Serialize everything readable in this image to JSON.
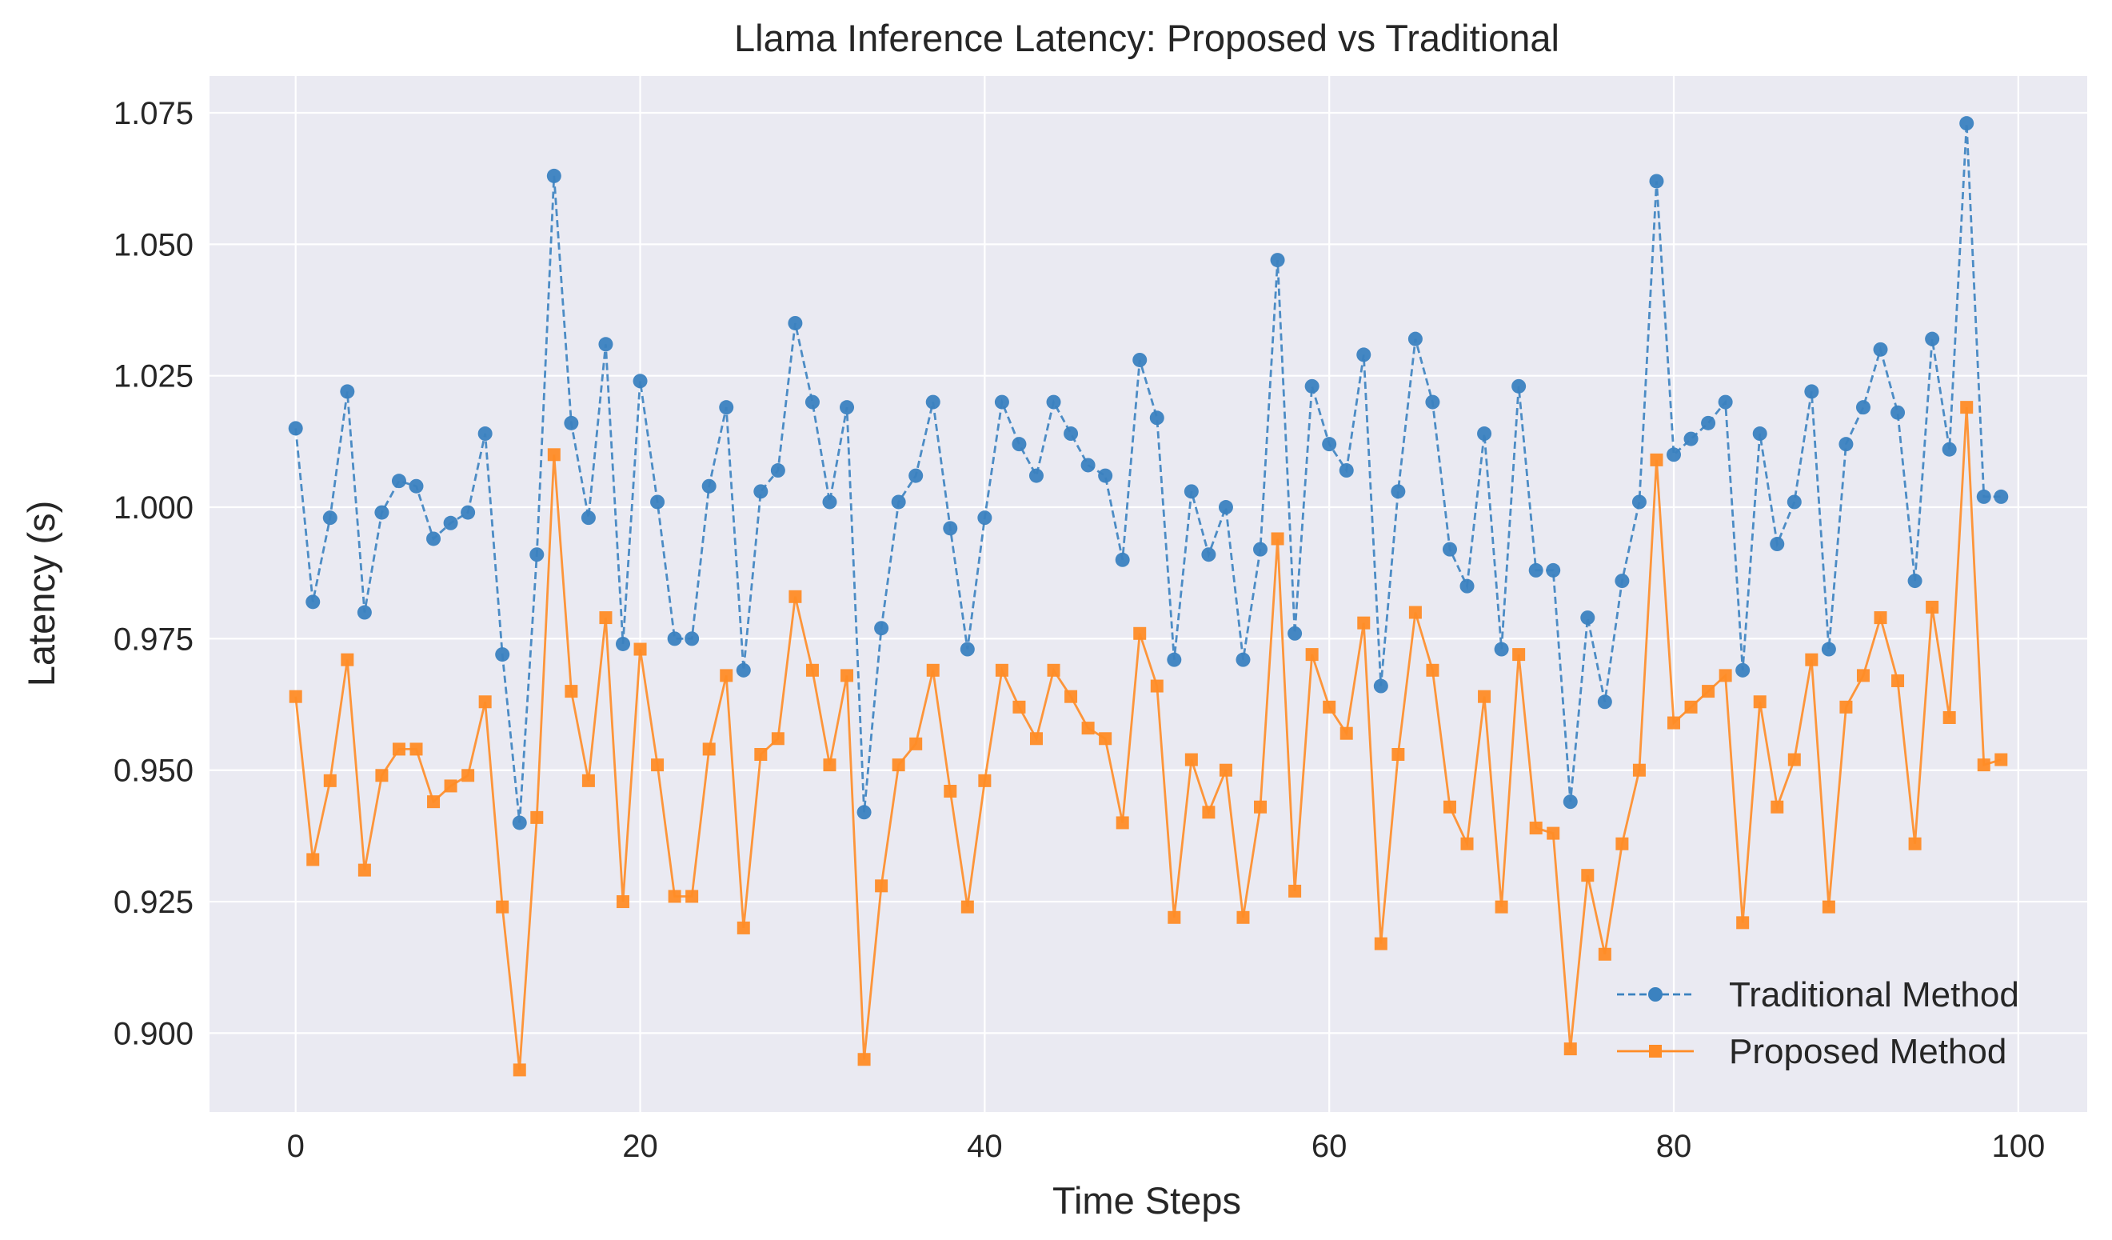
{
  "chart_data": {
    "type": "line",
    "title": "Llama Inference Latency: Proposed vs Traditional",
    "xlabel": "Time Steps",
    "ylabel": "Latency (s)",
    "xlim": [
      -5,
      104
    ],
    "ylim": [
      0.885,
      1.082
    ],
    "xticks": [
      0,
      20,
      40,
      60,
      80,
      100
    ],
    "xtick_labels": [
      "0",
      "20",
      "40",
      "60",
      "80",
      "100"
    ],
    "yticks": [
      0.9,
      0.925,
      0.95,
      0.975,
      1.0,
      1.025,
      1.05,
      1.075
    ],
    "ytick_labels": [
      "0.900",
      "0.925",
      "0.950",
      "0.975",
      "1.000",
      "1.025",
      "1.050",
      "1.075"
    ],
    "grid": true,
    "legend_position": "bottom-right",
    "x": [
      0,
      1,
      2,
      3,
      4,
      5,
      6,
      7,
      8,
      9,
      10,
      11,
      12,
      13,
      14,
      15,
      16,
      17,
      18,
      19,
      20,
      21,
      22,
      23,
      24,
      25,
      26,
      27,
      28,
      29,
      30,
      31,
      32,
      33,
      34,
      35,
      36,
      37,
      38,
      39,
      40,
      41,
      42,
      43,
      44,
      45,
      46,
      47,
      48,
      49,
      50,
      51,
      52,
      53,
      54,
      55,
      56,
      57,
      58,
      59,
      60,
      61,
      62,
      63,
      64,
      65,
      66,
      67,
      68,
      69,
      70,
      71,
      72,
      73,
      74,
      75,
      76,
      77,
      78,
      79,
      80,
      81,
      82,
      83,
      84,
      85,
      86,
      87,
      88,
      89,
      90,
      91,
      92,
      93,
      94,
      95,
      96,
      97,
      98,
      99
    ],
    "series": [
      {
        "name": "Traditional Method",
        "color": "#3b82c0",
        "marker": "circle",
        "linestyle": "dashed",
        "values": [
          1.015,
          0.982,
          0.998,
          1.022,
          0.98,
          0.999,
          1.005,
          1.004,
          0.994,
          0.997,
          0.999,
          1.014,
          0.972,
          0.94,
          0.991,
          1.063,
          1.016,
          0.998,
          1.031,
          0.974,
          1.024,
          1.001,
          0.975,
          0.975,
          1.004,
          1.019,
          0.969,
          1.003,
          1.007,
          1.035,
          1.02,
          1.001,
          1.019,
          0.942,
          0.977,
          1.001,
          1.006,
          1.02,
          0.996,
          0.973,
          0.998,
          1.02,
          1.012,
          1.006,
          1.02,
          1.014,
          1.008,
          1.006,
          0.99,
          1.028,
          1.017,
          0.971,
          1.003,
          0.991,
          1.0,
          0.971,
          0.992,
          1.047,
          0.976,
          1.023,
          1.012,
          1.007,
          1.029,
          0.966,
          1.003,
          1.032,
          1.02,
          0.992,
          0.985,
          1.014,
          0.973,
          1.023,
          0.988,
          0.988,
          0.944,
          0.979,
          0.963,
          0.986,
          1.001,
          1.062,
          1.01,
          1.013,
          1.016,
          1.02,
          0.969,
          1.014,
          0.993,
          1.001,
          1.022,
          0.973,
          1.012,
          1.019,
          1.03,
          1.018,
          0.986,
          1.032,
          1.011,
          1.073,
          1.002,
          1.002
        ]
      },
      {
        "name": "Proposed Method",
        "color": "#ff8c26",
        "marker": "square",
        "linestyle": "solid",
        "values": [
          0.964,
          0.933,
          0.948,
          0.971,
          0.931,
          0.949,
          0.954,
          0.954,
          0.944,
          0.947,
          0.949,
          0.963,
          0.924,
          0.893,
          0.941,
          1.01,
          0.965,
          0.948,
          0.979,
          0.925,
          0.973,
          0.951,
          0.926,
          0.926,
          0.954,
          0.968,
          0.92,
          0.953,
          0.956,
          0.983,
          0.969,
          0.951,
          0.968,
          0.895,
          0.928,
          0.951,
          0.955,
          0.969,
          0.946,
          0.924,
          0.948,
          0.969,
          0.962,
          0.956,
          0.969,
          0.964,
          0.958,
          0.956,
          0.94,
          0.976,
          0.966,
          0.922,
          0.952,
          0.942,
          0.95,
          0.922,
          0.943,
          0.994,
          0.927,
          0.972,
          0.962,
          0.957,
          0.978,
          0.917,
          0.953,
          0.98,
          0.969,
          0.943,
          0.936,
          0.964,
          0.924,
          0.972,
          0.939,
          0.938,
          0.897,
          0.93,
          0.915,
          0.936,
          0.95,
          1.009,
          0.959,
          0.962,
          0.965,
          0.968,
          0.921,
          0.963,
          0.943,
          0.952,
          0.971,
          0.924,
          0.962,
          0.968,
          0.979,
          0.967,
          0.936,
          0.981,
          0.96,
          1.019,
          0.951,
          0.952
        ]
      }
    ]
  }
}
